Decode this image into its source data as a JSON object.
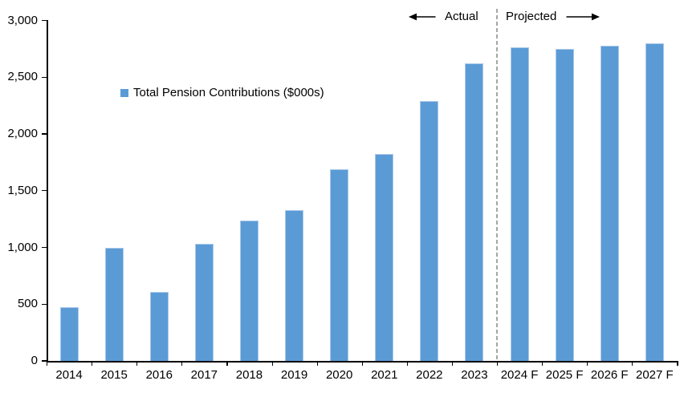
{
  "chart_data": {
    "type": "bar",
    "title": "",
    "legend": "Total Pension Contributions ($000s)",
    "legend_position": "inside-upper-left",
    "categories": [
      "2014",
      "2015",
      "2016",
      "2017",
      "2018",
      "2019",
      "2020",
      "2021",
      "2022",
      "2023",
      "2024 F",
      "2025 F",
      "2026 F",
      "2027 F"
    ],
    "values": [
      470,
      1000,
      610,
      1030,
      1240,
      1330,
      1690,
      1820,
      2290,
      2620,
      2760,
      2750,
      2780,
      2800
    ],
    "xlabel": "",
    "ylabel": "",
    "ylim": [
      0,
      3000
    ],
    "ytick_step": 500,
    "ytick_labels": [
      "0",
      "500",
      "1,000",
      "1,500",
      "2,000",
      "2,500",
      "3,000"
    ],
    "grid": false,
    "annotations": {
      "actual_label": "Actual",
      "projected_label": "Projected",
      "divider_after_category": "2023"
    },
    "colors": {
      "bar": "#5b9bd5",
      "bar_border": "#aac8ea",
      "divider": "#a6a6a6",
      "axis": "#000000",
      "text": "#000000"
    }
  }
}
